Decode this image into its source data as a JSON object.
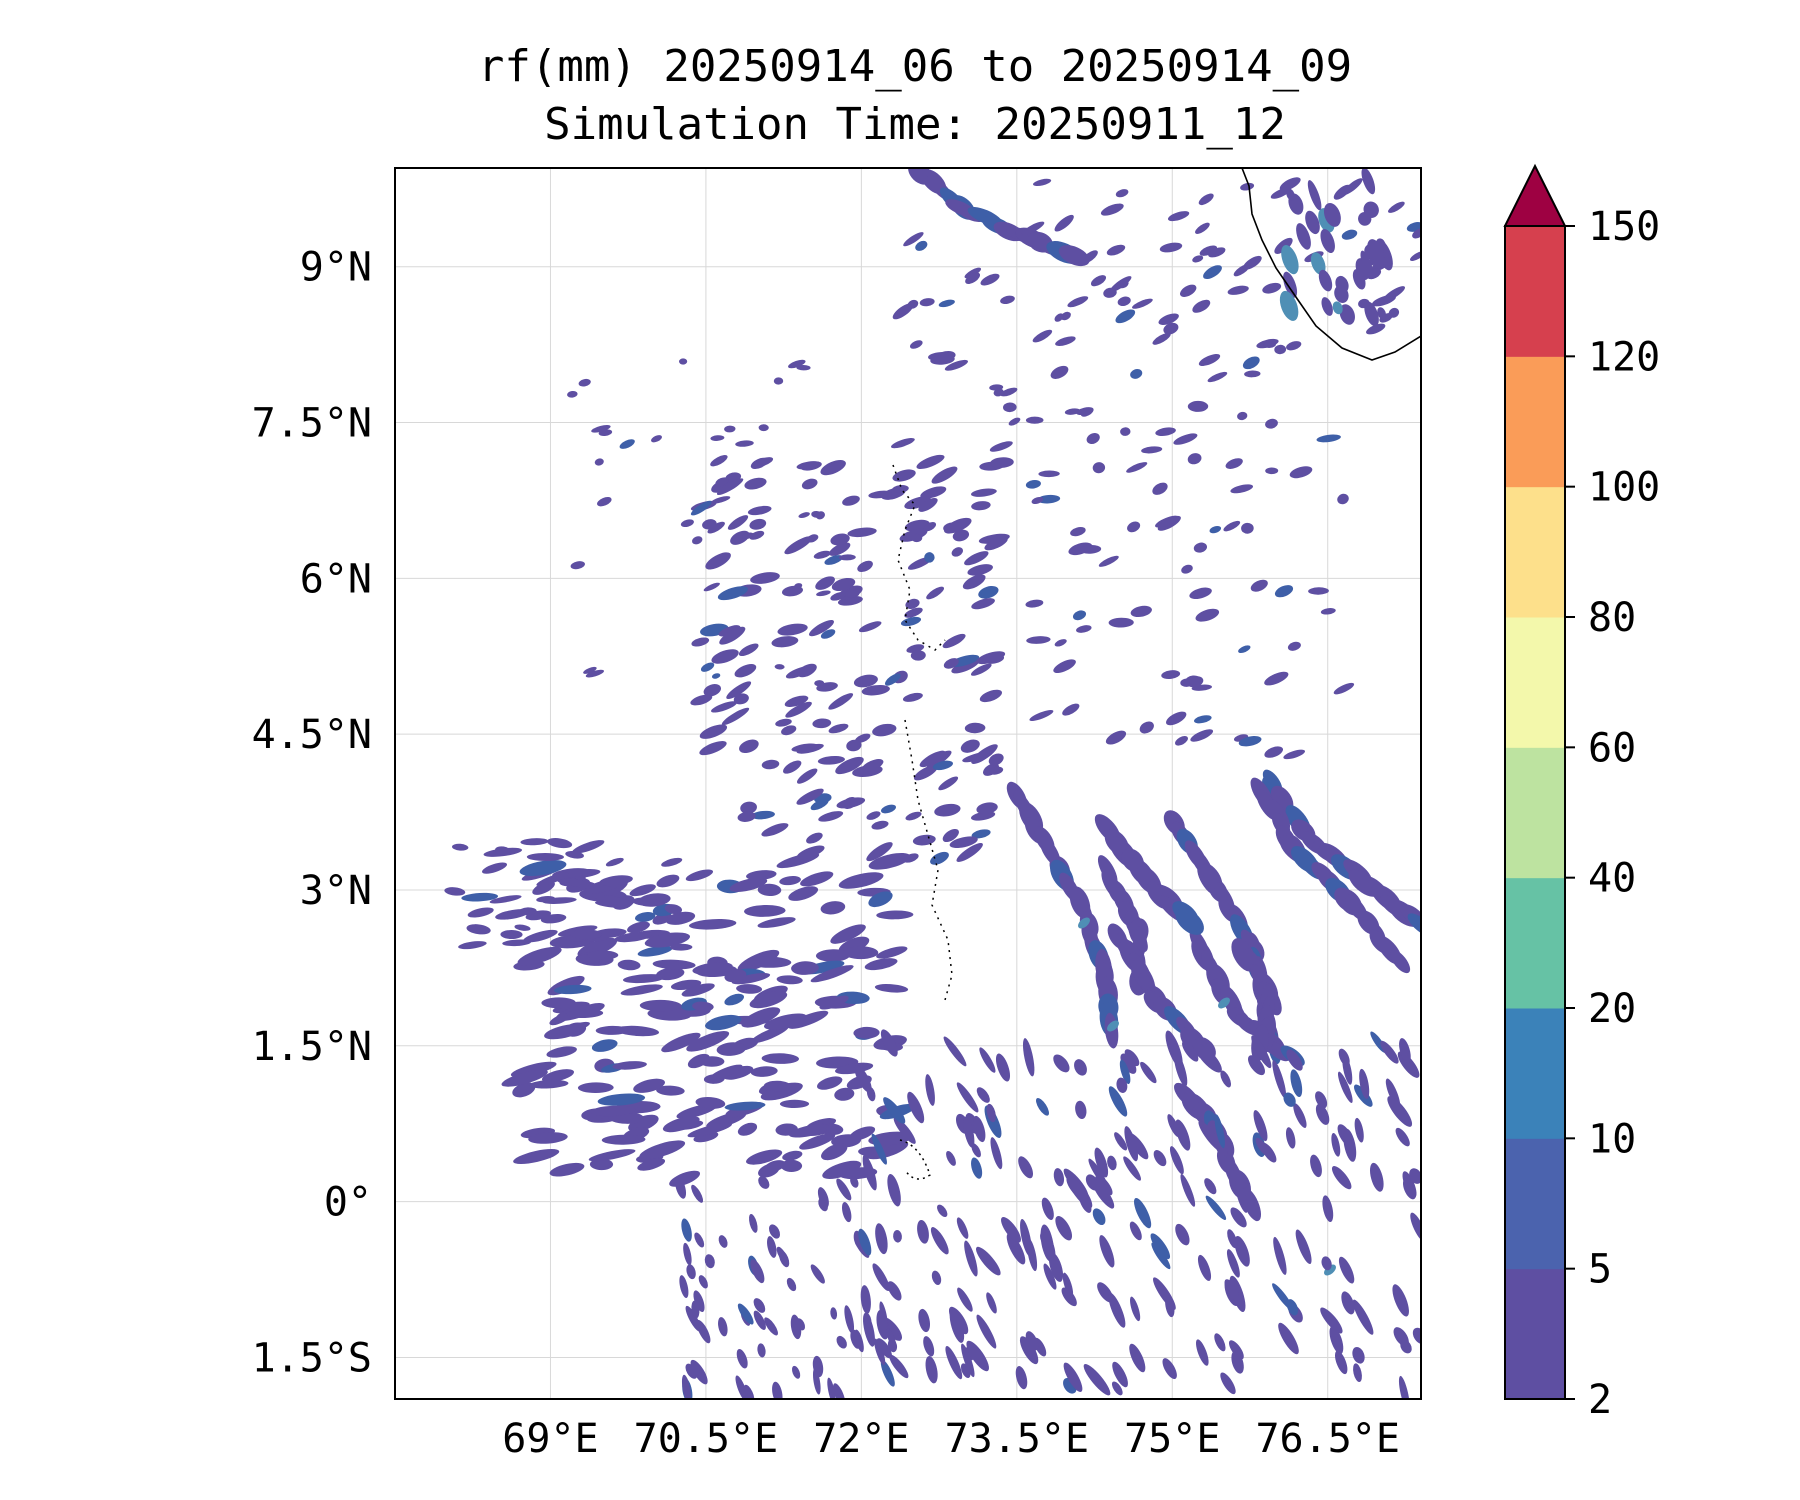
{
  "title": {
    "line1": "rf(mm) 20250914_06 to 20250914_09",
    "line2": "Simulation Time: 20250911_12"
  },
  "map": {
    "extent": {
      "lon_min": 67.5,
      "lon_max": 77.4,
      "lat_min": -1.9,
      "lat_max": 9.95
    },
    "gridlines": true,
    "lon_ticks": [
      {
        "value": 69.0,
        "label": "69°E"
      },
      {
        "value": 70.5,
        "label": "70.5°E"
      },
      {
        "value": 72.0,
        "label": "72°E"
      },
      {
        "value": 73.5,
        "label": "73.5°E"
      },
      {
        "value": 75.0,
        "label": "75°E"
      },
      {
        "value": 76.5,
        "label": "76.5°E"
      }
    ],
    "lat_ticks": [
      {
        "value": 9.0,
        "label": "9°N"
      },
      {
        "value": 7.5,
        "label": "7.5°N"
      },
      {
        "value": 6.0,
        "label": "6°N"
      },
      {
        "value": 4.5,
        "label": "4.5°N"
      },
      {
        "value": 3.0,
        "label": "3°N"
      },
      {
        "value": 1.5,
        "label": "1.5°N"
      },
      {
        "value": 0.0,
        "label": "0°"
      },
      {
        "value": -1.5,
        "label": "1.5°S"
      }
    ],
    "rain_color_main": "#5e4fa2",
    "rain_color_secondary": "#3e5fa8",
    "rain_color_peak": "#4f8fb5"
  },
  "colorbar": {
    "levels": [
      {
        "value": 2,
        "label": "2"
      },
      {
        "value": 5,
        "label": "5"
      },
      {
        "value": 10,
        "label": "10"
      },
      {
        "value": 20,
        "label": "20"
      },
      {
        "value": 40,
        "label": "40"
      },
      {
        "value": 60,
        "label": "60"
      },
      {
        "value": 80,
        "label": "80"
      },
      {
        "value": 100,
        "label": "100"
      },
      {
        "value": 120,
        "label": "120"
      },
      {
        "value": 150,
        "label": "150"
      }
    ],
    "colors": [
      "#5e4fa2",
      "#4b63ae",
      "#3b82b9",
      "#66c2a5",
      "#bde3a0",
      "#f3f8ab",
      "#fde08b",
      "#fa9c58",
      "#d6404e"
    ],
    "extend_color": "#9e0142",
    "extend": "max"
  }
}
